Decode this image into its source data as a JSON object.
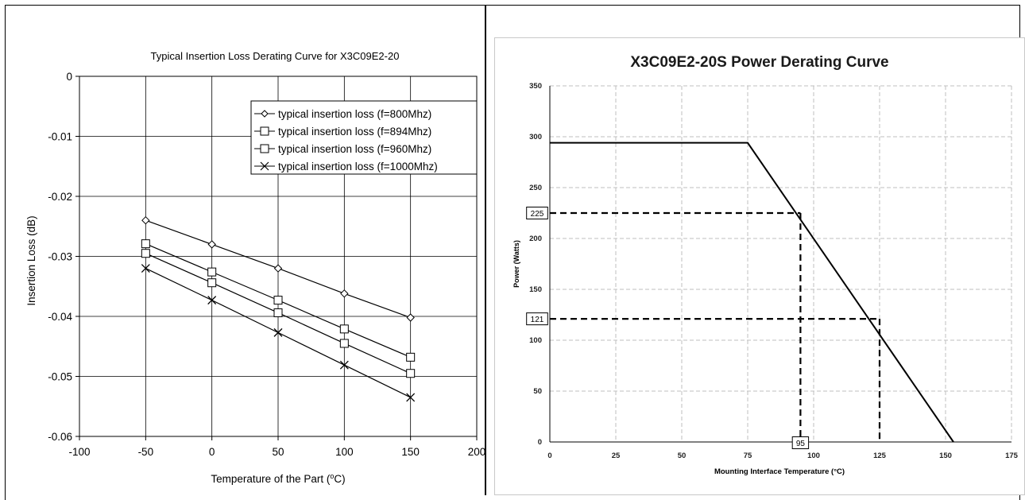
{
  "chart_data": [
    {
      "type": "line",
      "title": "Typical Insertion Loss Derating Curve for X3C09E2-20",
      "xlabel": "Temperature of the Part (",
      "xlabel_sup": "o",
      "xlabel_unit": "C)",
      "ylabel": "Insertion Loss (dB)",
      "xlim": [
        -100,
        200
      ],
      "ylim": [
        -0.06,
        0
      ],
      "xticks": [
        -100,
        -50,
        0,
        50,
        100,
        150,
        200
      ],
      "xtick_labels": [
        "-100",
        "-50",
        "0",
        "50",
        "100",
        "150",
        "200"
      ],
      "yticks": [
        0,
        -0.01,
        -0.02,
        -0.03,
        -0.04,
        -0.05,
        -0.06
      ],
      "ytick_labels": [
        "0",
        "-0.01",
        "-0.02",
        "-0.03",
        "-0.04",
        "-0.05",
        "-0.06"
      ],
      "grid": true,
      "legend_position": "top-right",
      "x": [
        -50,
        0,
        50,
        100,
        150
      ],
      "series": [
        {
          "name": "typical insertion loss (f=800Mhz)",
          "marker": "diamond",
          "values": [
            -0.024,
            -0.028,
            -0.032,
            -0.0362,
            -0.0402
          ]
        },
        {
          "name": "typical insertion loss (f=894Mhz)",
          "marker": "square",
          "values": [
            -0.0279,
            -0.0326,
            -0.0373,
            -0.0421,
            -0.0468
          ]
        },
        {
          "name": "typical insertion loss (f=960Mhz)",
          "marker": "square",
          "values": [
            -0.0295,
            -0.0344,
            -0.0394,
            -0.0445,
            -0.0495
          ]
        },
        {
          "name": "typical insertion loss (f=1000Mhz)",
          "marker": "x",
          "values": [
            -0.032,
            -0.0373,
            -0.0427,
            -0.0481,
            -0.0535
          ]
        }
      ],
      "colors": {
        "line": "#000000",
        "grid": "#000000",
        "plot_bg": "#ffffff"
      }
    },
    {
      "type": "line",
      "title": "X3C09E2-20S Power Derating Curve",
      "xlabel": "Mounting Interface Temperature (°C)",
      "ylabel": "Power (Watts)",
      "xlim": [
        0,
        175
      ],
      "ylim": [
        0,
        350
      ],
      "xticks": [
        0,
        25,
        50,
        75,
        100,
        125,
        150,
        175
      ],
      "xtick_labels": [
        "0",
        "25",
        "50",
        "75",
        "100",
        "125",
        "150",
        "175"
      ],
      "yticks": [
        0,
        50,
        100,
        150,
        200,
        250,
        300,
        350
      ],
      "ytick_labels": [
        "0",
        "50",
        "100",
        "150",
        "200",
        "250",
        "300",
        "350"
      ],
      "grid": "dashed",
      "series": [
        {
          "x": [
            0,
            75,
            153
          ],
          "values": [
            294,
            294,
            0
          ]
        }
      ],
      "annotations": [
        {
          "label": "225",
          "x": 95,
          "y": 225,
          "axis": "y"
        },
        {
          "label": "121",
          "x": 125,
          "y": 121,
          "axis": "y"
        },
        {
          "label": "95",
          "x": 95,
          "y": 0,
          "axis": "x"
        }
      ],
      "guide_lines": [
        {
          "from": [
            0,
            225
          ],
          "to": [
            95,
            225
          ]
        },
        {
          "from": [
            95,
            225
          ],
          "to": [
            95,
            0
          ]
        },
        {
          "from": [
            0,
            121
          ],
          "to": [
            125,
            121
          ]
        },
        {
          "from": [
            125,
            121
          ],
          "to": [
            125,
            0
          ]
        }
      ],
      "colors": {
        "line": "#000000",
        "grid": "#bfbfbf",
        "guide": "#000000",
        "title": "#1a1a1a"
      }
    }
  ]
}
